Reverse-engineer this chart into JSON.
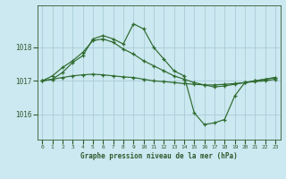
{
  "title": "Graphe pression niveau de la mer (hPa)",
  "bg_color": "#cce8f0",
  "grid_color": "#aaccd8",
  "line_color": "#2d6a2d",
  "tick_label_color": "#2d5a2d",
  "ylim": [
    1015.25,
    1019.25
  ],
  "yticks": [
    1016,
    1017,
    1018
  ],
  "xlim": [
    -0.5,
    23.5
  ],
  "xticks": [
    0,
    1,
    2,
    3,
    4,
    5,
    6,
    7,
    8,
    9,
    10,
    11,
    12,
    13,
    14,
    15,
    16,
    17,
    18,
    19,
    20,
    21,
    22,
    23
  ],
  "series": [
    {
      "x": [
        0,
        1,
        2,
        3,
        4,
        5,
        6,
        7,
        8,
        9,
        10,
        11,
        12,
        13,
        14,
        15,
        16,
        17,
        18,
        19,
        20,
        21,
        22,
        23
      ],
      "y": [
        1017.0,
        1017.05,
        1017.25,
        1017.55,
        1017.75,
        1018.25,
        1018.35,
        1018.25,
        1018.1,
        1018.7,
        1018.55,
        1018.0,
        1017.65,
        1017.3,
        1017.15,
        1016.05,
        1015.7,
        1015.75,
        1015.85,
        1016.55,
        1016.95,
        1017.0,
        1017.05,
        1017.1
      ]
    },
    {
      "x": [
        0,
        1,
        2,
        3,
        4,
        5,
        6,
        7,
        8,
        9,
        10,
        11,
        12,
        13,
        14,
        15,
        16,
        17,
        18,
        19,
        20,
        21,
        22,
        23
      ],
      "y": [
        1017.0,
        1017.05,
        1017.1,
        1017.15,
        1017.18,
        1017.2,
        1017.18,
        1017.15,
        1017.12,
        1017.1,
        1017.05,
        1017.0,
        1016.98,
        1016.95,
        1016.92,
        1016.9,
        1016.88,
        1016.88,
        1016.9,
        1016.92,
        1016.95,
        1016.98,
        1017.0,
        1017.05
      ]
    },
    {
      "x": [
        0,
        1,
        2,
        3,
        4,
        5,
        6,
        7,
        8,
        9,
        10,
        11,
        12,
        13,
        14,
        15,
        16,
        17,
        18,
        19,
        20,
        21,
        22,
        23
      ],
      "y": [
        1017.0,
        1017.15,
        1017.4,
        1017.6,
        1017.85,
        1018.2,
        1018.25,
        1018.15,
        1017.95,
        1017.8,
        1017.6,
        1017.45,
        1017.3,
        1017.15,
        1017.05,
        1016.95,
        1016.88,
        1016.82,
        1016.85,
        1016.9,
        1016.95,
        1017.0,
        1017.05,
        1017.1
      ]
    }
  ]
}
